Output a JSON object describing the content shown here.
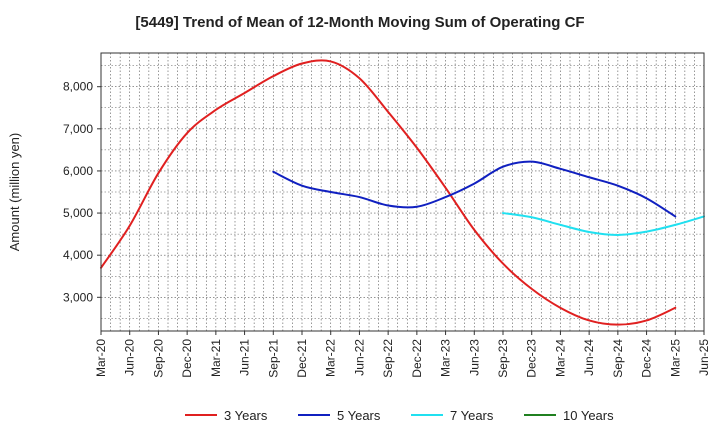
{
  "chart_data": {
    "type": "line",
    "title": "[5449]  Trend of Mean of 12-Month Moving Sum of Operating CF",
    "xlabel": "",
    "ylabel": "Amount (million yen)",
    "ylim": [
      2200,
      8800
    ],
    "yticks": [
      3000,
      4000,
      5000,
      6000,
      7000,
      8000
    ],
    "ytick_labels": [
      "3,000",
      "4,000",
      "5,000",
      "6,000",
      "7,000",
      "8,000"
    ],
    "grid": true,
    "legend_position": "bottom",
    "x_start": "Mar-20",
    "xtick_labels": [
      "Mar-20",
      "Jun-20",
      "Sep-20",
      "Dec-20",
      "Mar-21",
      "Jun-21",
      "Sep-21",
      "Dec-21",
      "Mar-22",
      "Jun-22",
      "Sep-22",
      "Dec-22",
      "Mar-23",
      "Jun-23",
      "Sep-23",
      "Dec-23",
      "Mar-24",
      "Jun-24",
      "Sep-24",
      "Dec-24",
      "Mar-25",
      "Jun-25"
    ],
    "series": [
      {
        "name": "3 Years",
        "color": "#e02020",
        "start_index": 0,
        "values": [
          3700,
          4700,
          5950,
          6900,
          7450,
          7850,
          8250,
          8550,
          8600,
          8200,
          7400,
          6550,
          5600,
          4600,
          3800,
          3200,
          2750,
          2450,
          2350,
          2450,
          2750
        ]
      },
      {
        "name": "5 Years",
        "color": "#1020c0",
        "start_index": 6,
        "values": [
          5980,
          5650,
          5500,
          5380,
          5180,
          5150,
          5380,
          5700,
          6100,
          6220,
          6050,
          5850,
          5650,
          5350,
          4920
        ]
      },
      {
        "name": "7 Years",
        "color": "#20e0f0",
        "start_index": 14,
        "values": [
          5000,
          4900,
          4720,
          4550,
          4480,
          4560,
          4720,
          4920
        ]
      },
      {
        "name": "10 Years",
        "color": "#208020",
        "start_index": 0,
        "values": []
      }
    ]
  }
}
